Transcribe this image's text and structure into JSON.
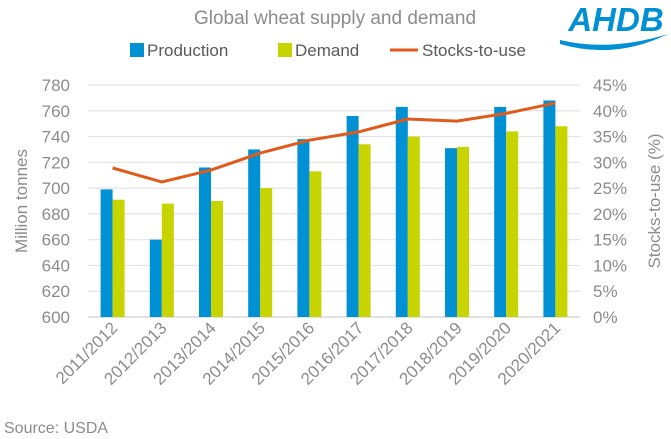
{
  "chart_data": {
    "type": "bar",
    "title": "Global wheat supply and demand",
    "categories": [
      "2011/2012",
      "2012/2013",
      "2013/2014",
      "2014/2015",
      "2015/2016",
      "2016/2017",
      "2017/2018",
      "2018/2019",
      "2019/2020",
      "2020/2021"
    ],
    "series": [
      {
        "name": "Production",
        "type": "bar",
        "axis": "left",
        "color": "#0090D4",
        "values": [
          699,
          660,
          716,
          730,
          738,
          756,
          763,
          731,
          763,
          768
        ]
      },
      {
        "name": "Demand",
        "type": "bar",
        "axis": "left",
        "color": "#C8D400",
        "values": [
          691,
          688,
          690,
          700,
          713,
          734,
          740,
          732,
          744,
          748
        ]
      },
      {
        "name": "Stocks-to-use",
        "type": "line",
        "axis": "right",
        "color": "#E05A1B",
        "values": [
          28.9,
          26.2,
          28.5,
          31.8,
          34.3,
          35.9,
          38.4,
          38.0,
          39.5,
          41.5
        ]
      }
    ],
    "ylabel": "Million tonnes",
    "ylim": [
      600,
      780
    ],
    "yticks": [
      "600",
      "620",
      "640",
      "660",
      "680",
      "700",
      "720",
      "740",
      "760",
      "780"
    ],
    "y2label": "Stocks-to-use (%)",
    "y2lim": [
      0,
      45
    ],
    "y2ticks": [
      "0%",
      "5%",
      "10%",
      "15%",
      "20%",
      "25%",
      "30%",
      "35%",
      "40%",
      "45%"
    ],
    "grid": true,
    "legend": "top"
  },
  "source": "Source: USDA",
  "logo": "AHDB"
}
